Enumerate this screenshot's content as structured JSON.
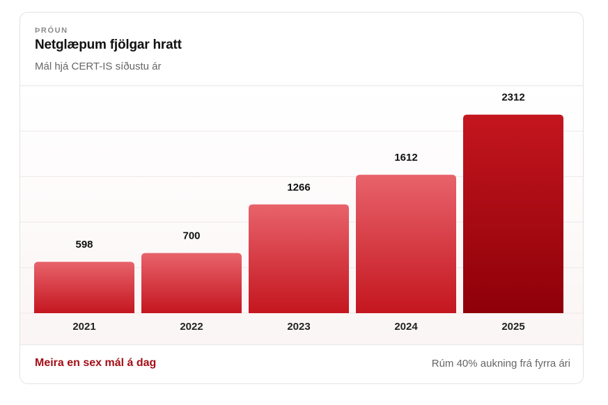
{
  "card": {
    "eyebrow": "ÞRÓUN",
    "title": "Netglæpum fjölgar hratt",
    "subtitle": "Mál hjá CERT-IS síðustu ár"
  },
  "footer": {
    "highlight": "Meira en sex mál á dag",
    "note": "Rúm 40% aukning frá fyrra ári"
  },
  "colors": {
    "bar_light": "#e8636b",
    "bar_mid": "#c4161f",
    "bar_dark": "#8e0008",
    "accent": "#a30f17"
  },
  "chart_data": {
    "type": "bar",
    "categories": [
      "2021",
      "2022",
      "2023",
      "2024",
      "2025"
    ],
    "values": [
      598,
      700,
      1266,
      1612,
      2312
    ],
    "title": "Netglæpum fjölgar hratt",
    "xlabel": "",
    "ylabel": "",
    "ylim": [
      0,
      2650
    ],
    "grid": true,
    "data_labels": true,
    "highlight_last": true
  }
}
